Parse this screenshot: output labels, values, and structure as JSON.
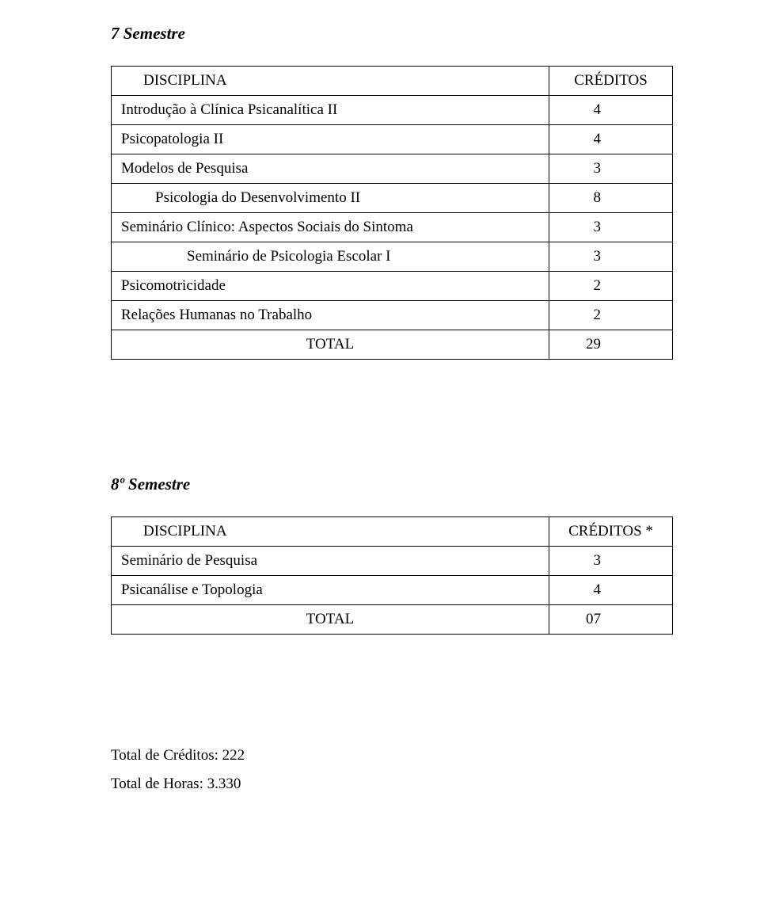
{
  "semester7": {
    "heading": "7 Semestre",
    "header_name": "DISCIPLINA",
    "header_credits": "CRÉDITOS",
    "rows": [
      {
        "name": "Introdução à Clínica Psicanalítica II",
        "credits": "4",
        "indent": 0
      },
      {
        "name": "Psicopatologia II",
        "credits": "4",
        "indent": 0
      },
      {
        "name": "Modelos de Pesquisa",
        "credits": "3",
        "indent": 0
      },
      {
        "name": "Psicologia do Desenvolvimento II",
        "credits": "8",
        "indent": 1
      },
      {
        "name": "Seminário Clínico: Aspectos Sociais do Sintoma",
        "credits": "3",
        "indent": 0
      },
      {
        "name": "Seminário de Psicologia Escolar I",
        "credits": "3",
        "indent": 2
      },
      {
        "name": "Psicomotricidade",
        "credits": "2",
        "indent": 0
      },
      {
        "name": "Relações Humanas no Trabalho",
        "credits": "2",
        "indent": 0
      }
    ],
    "total_label": "TOTAL",
    "total_value": "29"
  },
  "semester8": {
    "heading": "8º Semestre",
    "header_name": "DISCIPLINA",
    "header_credits": "CRÉDITOS *",
    "rows": [
      {
        "name": "Seminário de Pesquisa",
        "credits": "3",
        "indent": 0
      },
      {
        "name": "Psicanálise e Topologia",
        "credits": "4",
        "indent": 0
      }
    ],
    "total_label": "TOTAL",
    "total_value": "07"
  },
  "totals": {
    "credits_label": "Total de Créditos: 222",
    "hours_label": "Total de Horas: 3.330"
  }
}
